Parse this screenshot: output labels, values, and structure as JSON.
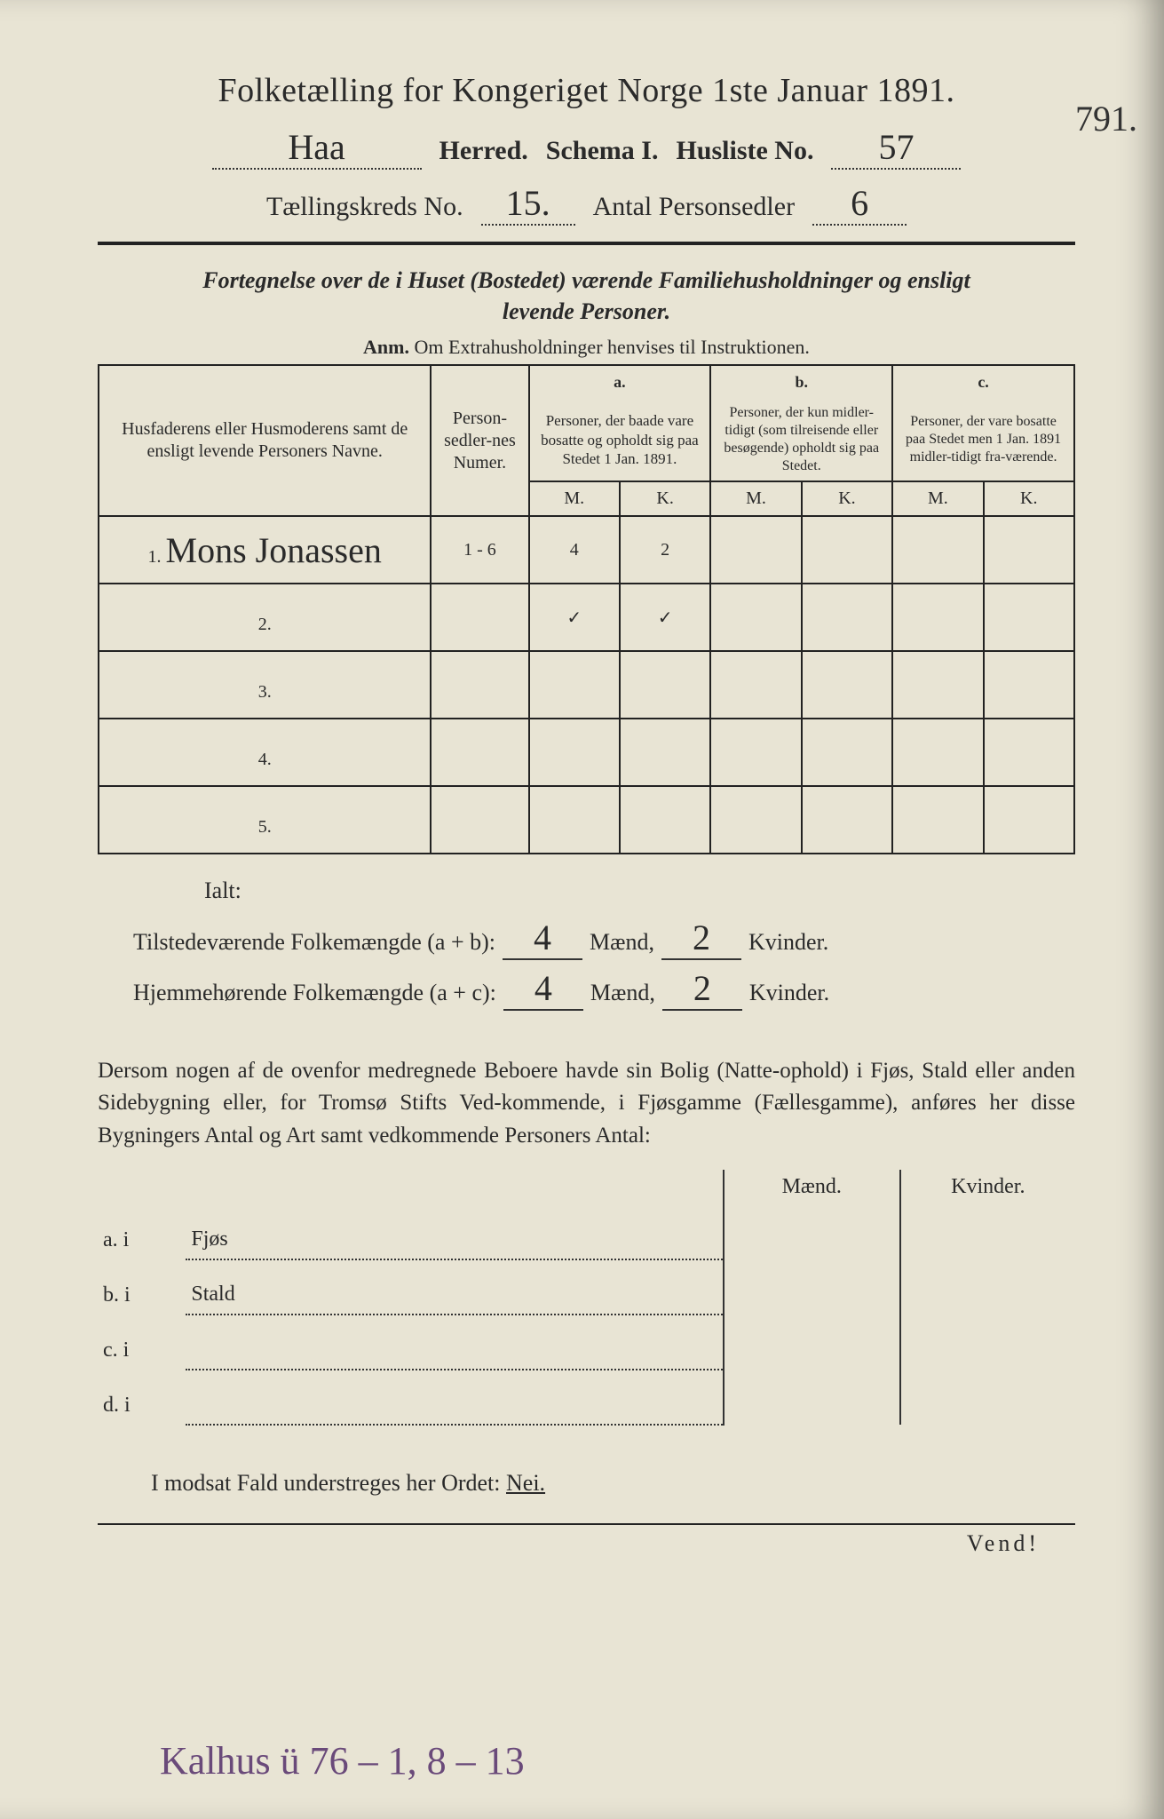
{
  "header": {
    "title": "Folketælling for Kongeriget Norge 1ste Januar 1891.",
    "herred_value": "Haa",
    "herred_label": "Herred.",
    "schema_label": "Schema I.",
    "husliste_label": "Husliste No.",
    "husliste_value": "57",
    "kreds_label": "Tællingskreds No.",
    "kreds_value": "15.",
    "antal_label": "Antal Personsedler",
    "antal_value": "6",
    "margin_note": "791."
  },
  "subtitle": {
    "line1": "Fortegnelse over de i Huset (Bostedet) værende Familiehusholdninger og ensligt",
    "line2": "levende Personer.",
    "anm_label": "Anm.",
    "anm_text": "Om Extrahusholdninger henvises til Instruktionen."
  },
  "table": {
    "col_names": "Husfaderens eller Husmoderens samt de ensligt levende Personers Navne.",
    "col_num": "Person-sedler-nes Numer.",
    "col_a_top": "a.",
    "col_a": "Personer, der baade vare bosatte og opholdt sig paa Stedet 1 Jan. 1891.",
    "col_b_top": "b.",
    "col_b": "Personer, der kun midler-tidigt (som tilreisende eller besøgende) opholdt sig paa Stedet.",
    "col_c_top": "c.",
    "col_c": "Personer, der vare bosatte paa Stedet men 1 Jan. 1891 midler-tidigt fra-værende.",
    "M": "M.",
    "K": "K.",
    "rows": [
      {
        "n": "1.",
        "name": "Mons Jonassen",
        "num": "1 - 6",
        "aM": "4",
        "aK": "2",
        "bM": "",
        "bK": "",
        "cM": "",
        "cK": ""
      },
      {
        "n": "2.",
        "name": "",
        "num": "",
        "aM": "✓",
        "aK": "✓",
        "bM": "",
        "bK": "",
        "cM": "",
        "cK": ""
      },
      {
        "n": "3.",
        "name": "",
        "num": "",
        "aM": "",
        "aK": "",
        "bM": "",
        "bK": "",
        "cM": "",
        "cK": ""
      },
      {
        "n": "4.",
        "name": "",
        "num": "",
        "aM": "",
        "aK": "",
        "bM": "",
        "bK": "",
        "cM": "",
        "cK": ""
      },
      {
        "n": "5.",
        "name": "",
        "num": "",
        "aM": "",
        "aK": "",
        "bM": "",
        "bK": "",
        "cM": "",
        "cK": ""
      }
    ]
  },
  "totals": {
    "ialt": "Ialt:",
    "line1_label": "Tilstedeværende Folkemængde (a + b):",
    "line1_m": "4",
    "line1_k": "2",
    "line2_label": "Hjemmehørende Folkemængde (a + c):",
    "line2_m": "4",
    "line2_k": "2",
    "maend": "Mænd,",
    "kvinder": "Kvinder."
  },
  "para": "Dersom nogen af de ovenfor medregnede Beboere havde sin Bolig (Natte-ophold) i Fjøs, Stald eller anden Sidebygning eller, for Tromsø Stifts Ved-kommende, i Fjøsgamme (Fællesgamme), anføres her disse Bygningers Antal og Art samt vedkommende Personers Antal:",
  "subtable": {
    "maend": "Mænd.",
    "kvinder": "Kvinder.",
    "rows": [
      {
        "lab": "a. i",
        "txt": "Fjøs"
      },
      {
        "lab": "b. i",
        "txt": "Stald"
      },
      {
        "lab": "c. i",
        "txt": ""
      },
      {
        "lab": "d. i",
        "txt": ""
      }
    ]
  },
  "nei": {
    "pre": "I modsat Fald understreges her Ordet:",
    "word": "Nei."
  },
  "vend": "Vend!",
  "handnote": "Kalhus ü 76 – 1, 8 – 13"
}
